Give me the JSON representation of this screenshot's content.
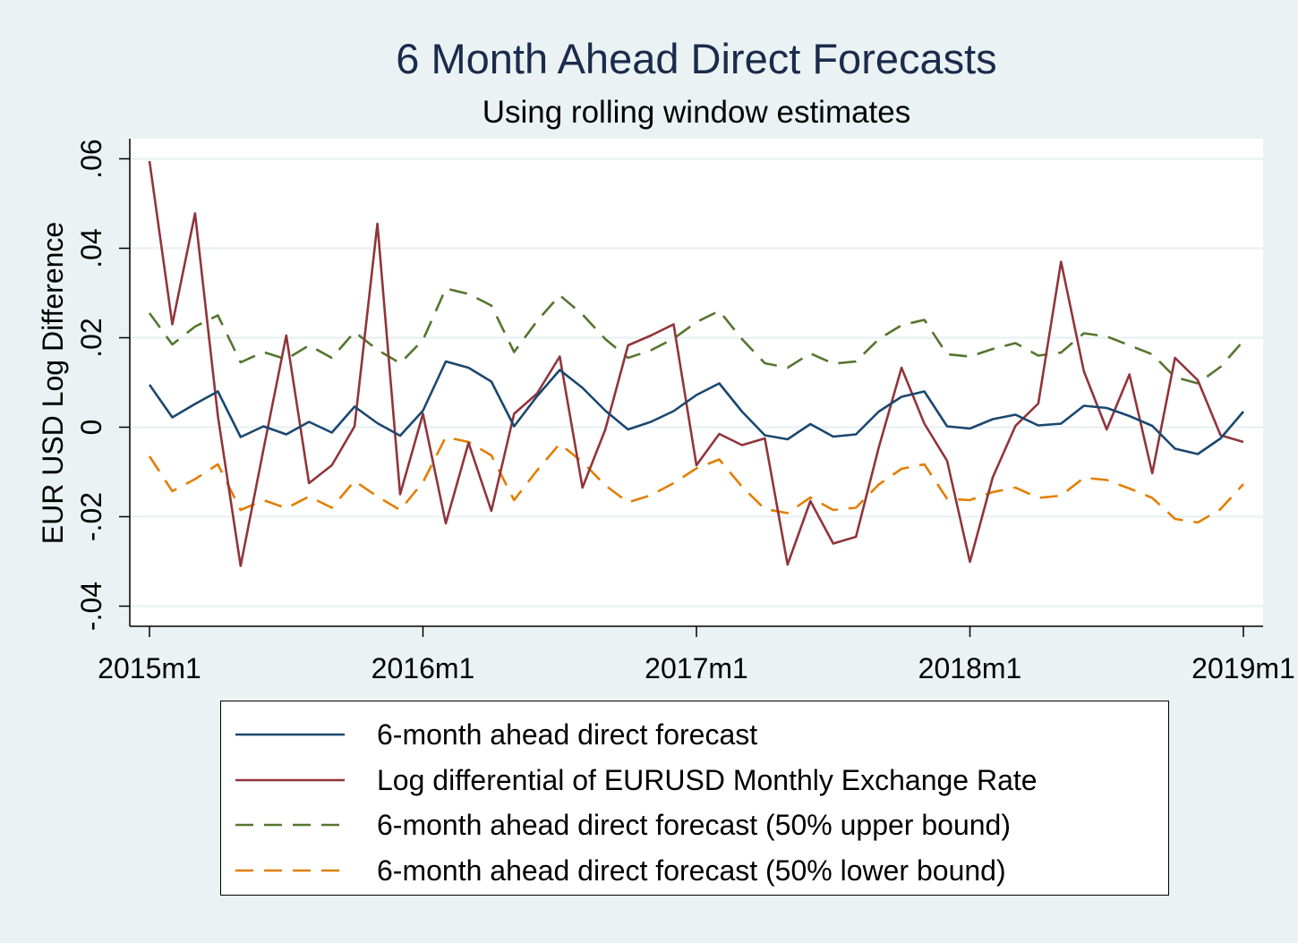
{
  "title": "6 Month Ahead Direct Forecasts",
  "subtitle": "Using rolling window estimates",
  "chart_data": {
    "type": "line",
    "title": "6 Month Ahead Direct Forecasts",
    "subtitle": "Using rolling window estimates",
    "xlabel": "",
    "ylabel": "EUR USD Log Difference",
    "x_ticks": [
      "2015m1",
      "2016m1",
      "2017m1",
      "2018m1",
      "2019m1"
    ],
    "y_ticks": [
      {
        "v": -0.04,
        "label": "-.04"
      },
      {
        "v": -0.02,
        "label": "-.02"
      },
      {
        "v": 0,
        "label": "0"
      },
      {
        "v": 0.02,
        "label": ".02"
      },
      {
        "v": 0.04,
        "label": ".04"
      },
      {
        "v": 0.06,
        "label": ".06"
      }
    ],
    "xlim": [
      "2015m1",
      "2019m1"
    ],
    "ylim": [
      -0.0445,
      0.0645
    ],
    "grid": true,
    "legend_position": "bottom",
    "x": [
      "2015m1",
      "2015m2",
      "2015m3",
      "2015m4",
      "2015m5",
      "2015m6",
      "2015m7",
      "2015m8",
      "2015m9",
      "2015m10",
      "2015m11",
      "2015m12",
      "2016m1",
      "2016m2",
      "2016m3",
      "2016m4",
      "2016m5",
      "2016m6",
      "2016m7",
      "2016m8",
      "2016m9",
      "2016m10",
      "2016m11",
      "2016m12",
      "2017m1",
      "2017m2",
      "2017m3",
      "2017m4",
      "2017m5",
      "2017m6",
      "2017m7",
      "2017m8",
      "2017m9",
      "2017m10",
      "2017m11",
      "2017m12",
      "2018m1",
      "2018m2",
      "2018m3",
      "2018m4",
      "2018m5",
      "2018m6",
      "2018m7",
      "2018m8",
      "2018m9",
      "2018m10",
      "2018m11",
      "2018m12",
      "2019m1"
    ],
    "series": [
      {
        "name": "6-month ahead direct forecast",
        "color": "#1a476f",
        "dash": "solid",
        "values": [
          0.0095,
          0.0022,
          0.0052,
          0.008,
          -0.0022,
          0.0002,
          -0.0016,
          0.0012,
          -0.0012,
          0.0046,
          0.0009,
          -0.0019,
          0.0037,
          0.0147,
          0.0133,
          0.0102,
          0.0002,
          0.0069,
          0.0128,
          0.0088,
          0.0037,
          -0.0005,
          0.0012,
          0.0036,
          0.0072,
          0.0098,
          0.0035,
          -0.0018,
          -0.0027,
          0.0007,
          -0.0021,
          -0.0016,
          0.0035,
          0.0068,
          0.008,
          0.0002,
          -0.0003,
          0.0018,
          0.0028,
          0.0004,
          0.0008,
          0.0048,
          0.0043,
          0.0025,
          0.0003,
          -0.0048,
          -0.006,
          -0.0025,
          0.0035
        ]
      },
      {
        "name": "Log differential of EURUSD Monthly Exchange Rate",
        "color": "#90353b",
        "dash": "solid",
        "values": [
          0.0595,
          0.023,
          0.0478,
          0.0025,
          -0.031,
          -0.005,
          0.0205,
          -0.0125,
          -0.0085,
          0.0002,
          0.0455,
          -0.015,
          0.003,
          -0.0215,
          -0.0035,
          -0.0187,
          0.003,
          0.0075,
          0.0158,
          -0.0135,
          -0.0005,
          0.0183,
          0.0205,
          0.023,
          -0.0085,
          -0.0015,
          -0.004,
          -0.0025,
          -0.0307,
          -0.0165,
          -0.026,
          -0.0245,
          -0.0045,
          0.0133,
          0.0008,
          -0.0075,
          -0.0301,
          -0.0112,
          0.0003,
          0.0053,
          0.037,
          0.0125,
          -0.0005,
          0.0118,
          -0.0103,
          0.0155,
          0.0105,
          -0.0018,
          -0.0033
        ]
      },
      {
        "name": "6-month ahead direct forecast (50% upper bound)",
        "color": "#55752f",
        "dash": "dashed",
        "values": [
          0.0255,
          0.0185,
          0.0225,
          0.025,
          0.0145,
          0.0168,
          0.0152,
          0.0183,
          0.0155,
          0.0213,
          0.0173,
          0.0143,
          0.0195,
          0.031,
          0.0298,
          0.0272,
          0.0168,
          0.0237,
          0.0295,
          0.0252,
          0.0197,
          0.0155,
          0.0172,
          0.0198,
          0.0235,
          0.026,
          0.0197,
          0.0143,
          0.0133,
          0.0165,
          0.0142,
          0.0147,
          0.0197,
          0.0228,
          0.024,
          0.0163,
          0.0158,
          0.0175,
          0.0188,
          0.016,
          0.0167,
          0.021,
          0.0203,
          0.0183,
          0.0163,
          0.0112,
          0.0098,
          0.0135,
          0.0193
        ]
      },
      {
        "name": "6-month ahead direct forecast (50% lower bound)",
        "color": "#e37e00",
        "dash": "dashed",
        "values": [
          -0.0065,
          -0.0143,
          -0.0116,
          -0.0083,
          -0.0185,
          -0.0163,
          -0.0181,
          -0.0155,
          -0.018,
          -0.012,
          -0.0155,
          -0.0185,
          -0.0123,
          -0.0022,
          -0.0033,
          -0.0063,
          -0.0163,
          -0.0097,
          -0.0037,
          -0.0078,
          -0.013,
          -0.0168,
          -0.0152,
          -0.0125,
          -0.0092,
          -0.0072,
          -0.0133,
          -0.0183,
          -0.0192,
          -0.0157,
          -0.0185,
          -0.018,
          -0.0128,
          -0.0093,
          -0.0083,
          -0.016,
          -0.0163,
          -0.0145,
          -0.0135,
          -0.0158,
          -0.0153,
          -0.0113,
          -0.0118,
          -0.0137,
          -0.0158,
          -0.0205,
          -0.0213,
          -0.0183,
          -0.0127
        ]
      }
    ]
  },
  "legend": {
    "items": [
      {
        "label": "6-month ahead direct forecast",
        "color": "#1a476f",
        "dash": "solid"
      },
      {
        "label": "Log differential of EURUSD Monthly Exchange Rate",
        "color": "#90353b",
        "dash": "solid"
      },
      {
        "label": "6-month ahead direct forecast (50% upper bound)",
        "color": "#55752f",
        "dash": "dashed"
      },
      {
        "label": "6-month ahead direct forecast (50% lower bound)",
        "color": "#e37e00",
        "dash": "dashed"
      }
    ]
  }
}
